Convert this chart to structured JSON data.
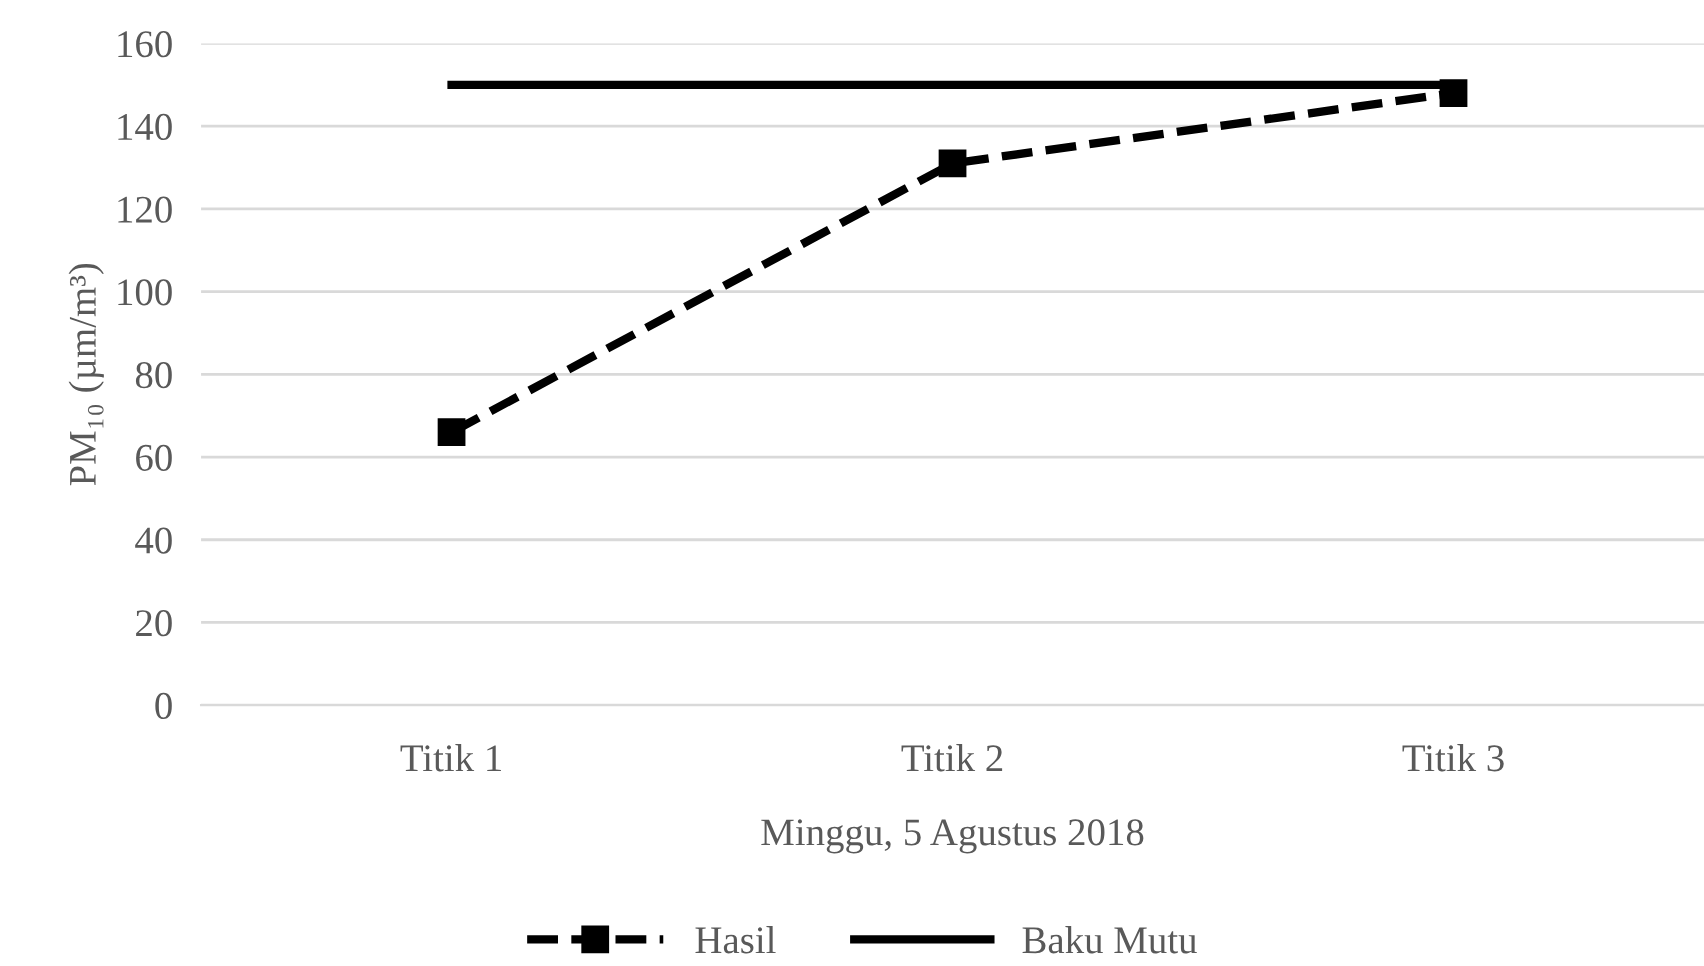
{
  "chart_data": {
    "type": "line",
    "ylabel": "PM₁₀ (µm/m³)",
    "xlabel": "Minggu, 5 Agustus 2018",
    "categories": [
      "Titik 1",
      "Titik 2",
      "Titik 3"
    ],
    "series": [
      {
        "name": "Hasil",
        "color": "#000000",
        "values": [
          66,
          131,
          148
        ],
        "marker": "square",
        "line_style": "dashed"
      },
      {
        "name": "Baku Mutu",
        "color": "#000000",
        "values": [
          150,
          150,
          150
        ],
        "marker": "none",
        "line_style": "solid"
      }
    ],
    "ylim": [
      0,
      160
    ],
    "yticks": [
      0,
      20,
      40,
      60,
      80,
      100,
      120,
      140,
      160
    ],
    "grid": "y",
    "legend": "bottom"
  }
}
